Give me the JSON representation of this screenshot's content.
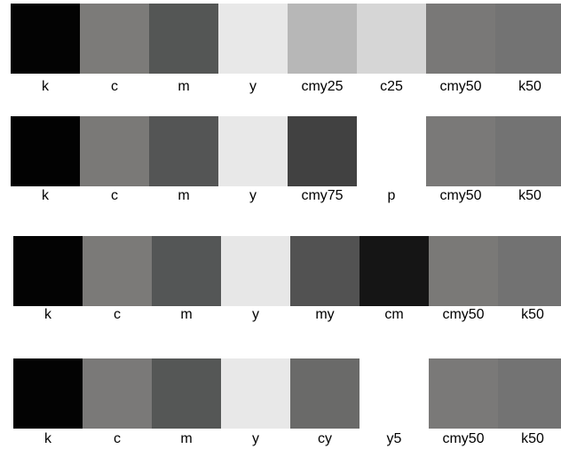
{
  "rows": [
    {
      "swatches": [
        {
          "label": "k",
          "color": "#030303"
        },
        {
          "label": "c",
          "color": "#7c7b79"
        },
        {
          "label": "m",
          "color": "#545655"
        },
        {
          "label": "y",
          "color": "#e8e8e8"
        },
        {
          "label": "cmy25",
          "color": "#b7b7b7"
        },
        {
          "label": "c25",
          "color": "#d6d6d6"
        },
        {
          "label": "cmy50",
          "color": "#797877"
        },
        {
          "label": "k50",
          "color": "#737373"
        }
      ]
    },
    {
      "swatches": [
        {
          "label": "k",
          "color": "#020202"
        },
        {
          "label": "c",
          "color": "#7a7977"
        },
        {
          "label": "m",
          "color": "#545555"
        },
        {
          "label": "y",
          "color": "#e8e8e8"
        },
        {
          "label": "cmy75",
          "color": "#414141"
        },
        {
          "label": "p",
          "color": "#ffffff"
        },
        {
          "label": "cmy50",
          "color": "#7a7978"
        },
        {
          "label": "k50",
          "color": "#737373"
        }
      ]
    },
    {
      "swatches": [
        {
          "label": "k",
          "color": "#030303"
        },
        {
          "label": "c",
          "color": "#7b7a78"
        },
        {
          "label": "m",
          "color": "#545656"
        },
        {
          "label": "y",
          "color": "#e7e7e7"
        },
        {
          "label": "my",
          "color": "#525252"
        },
        {
          "label": "cm",
          "color": "#151515"
        },
        {
          "label": "cmy50",
          "color": "#7a7977"
        },
        {
          "label": "k50",
          "color": "#727272"
        }
      ]
    },
    {
      "swatches": [
        {
          "label": "k",
          "color": "#030303"
        },
        {
          "label": "c",
          "color": "#7a7978"
        },
        {
          "label": "m",
          "color": "#555756"
        },
        {
          "label": "y",
          "color": "#e8e8e8"
        },
        {
          "label": "cy",
          "color": "#6a6a69"
        },
        {
          "label": "y5",
          "color": "#ffffff"
        },
        {
          "label": "cmy50",
          "color": "#7a7978"
        },
        {
          "label": "k50",
          "color": "#737373"
        }
      ]
    }
  ]
}
